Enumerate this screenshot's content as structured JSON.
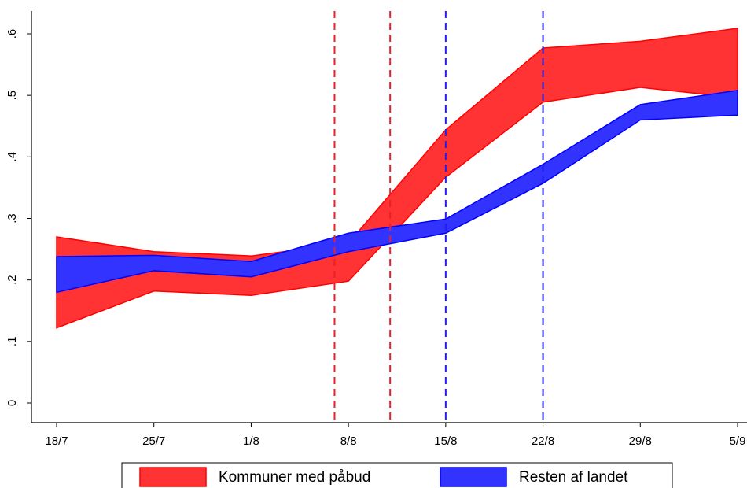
{
  "chart_data": {
    "type": "range_area",
    "x": [
      0,
      7,
      14,
      21,
      28,
      35,
      42,
      49
    ],
    "xlim": [
      0,
      49
    ],
    "xticks": [
      {
        "value": 0,
        "label": "18/7"
      },
      {
        "value": 7,
        "label": "25/7"
      },
      {
        "value": 14,
        "label": "1/8"
      },
      {
        "value": 21,
        "label": "8/8"
      },
      {
        "value": 28,
        "label": "15/8"
      },
      {
        "value": 35,
        "label": "22/8"
      },
      {
        "value": 42,
        "label": "29/8"
      },
      {
        "value": 49,
        "label": "5/9"
      }
    ],
    "ylim": [
      0,
      0.6
    ],
    "yticks": [
      0,
      {
        "value": 0.1,
        "label": ".1"
      },
      {
        "value": 0.2,
        "label": ".2"
      },
      {
        "value": 0.3,
        "label": ".3"
      },
      {
        "value": 0.4,
        "label": ".4"
      },
      {
        "value": 0.5,
        "label": ".5"
      },
      {
        "value": 0.6,
        "label": ".6"
      }
    ],
    "series": [
      {
        "name": "Kommuner med påbud",
        "color": "#ff3333",
        "edge": "#ff0000",
        "upper": [
          0.27,
          0.246,
          0.239,
          0.26,
          0.444,
          0.577,
          0.588,
          0.609
        ],
        "lower": [
          0.122,
          0.182,
          0.175,
          0.198,
          0.367,
          0.489,
          0.513,
          0.496
        ]
      },
      {
        "name": "Resten af landet",
        "color": "#3333ff",
        "edge": "#0000ff",
        "upper": [
          0.238,
          0.24,
          0.23,
          0.276,
          0.299,
          0.388,
          0.485,
          0.508
        ],
        "lower": [
          0.18,
          0.215,
          0.205,
          0.246,
          0.276,
          0.357,
          0.46,
          0.468
        ]
      }
    ],
    "reference_lines": [
      {
        "x": 20,
        "color": "#e8202a"
      },
      {
        "x": 24,
        "color": "#e8202a"
      },
      {
        "x": 28,
        "color": "#2020e8"
      },
      {
        "x": 35,
        "color": "#2020e8"
      }
    ]
  }
}
